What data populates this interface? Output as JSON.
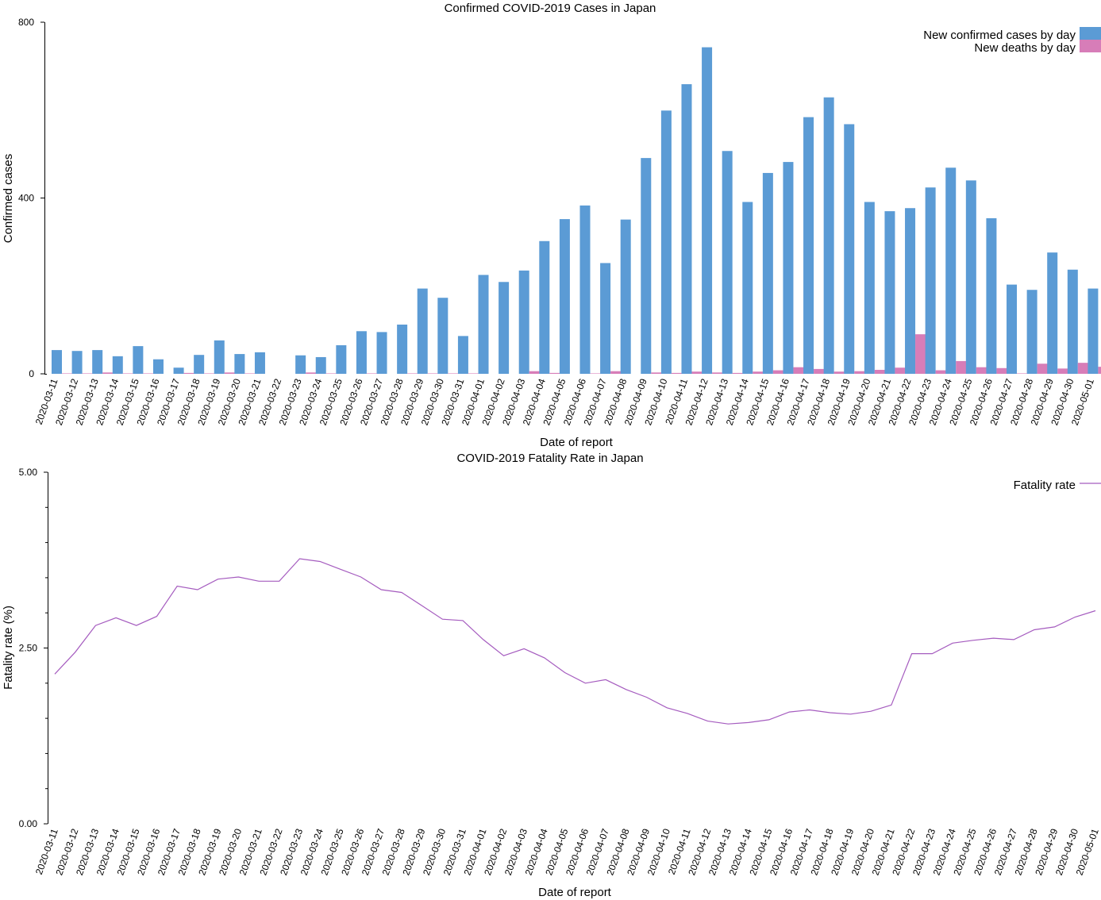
{
  "chart_data": [
    {
      "type": "bar",
      "title": "Confirmed COVID-2019 Cases in Japan",
      "xlabel": "Date of report",
      "ylabel": "Confirmed cases",
      "ylim": [
        0,
        800
      ],
      "y_ticks": [
        "0",
        "400",
        "800"
      ],
      "y_tick_values": [
        0,
        400,
        800
      ],
      "legend_position": "top-right",
      "categories": [
        "2020-03-11",
        "2020-03-12",
        "2020-03-13",
        "2020-03-14",
        "2020-03-15",
        "2020-03-16",
        "2020-03-17",
        "2020-03-18",
        "2020-03-19",
        "2020-03-20",
        "2020-03-21",
        "2020-03-22",
        "2020-03-23",
        "2020-03-24",
        "2020-03-25",
        "2020-03-26",
        "2020-03-27",
        "2020-03-28",
        "2020-03-29",
        "2020-03-30",
        "2020-03-31",
        "2020-04-01",
        "2020-04-02",
        "2020-04-03",
        "2020-04-04",
        "2020-04-05",
        "2020-04-06",
        "2020-04-07",
        "2020-04-08",
        "2020-04-09",
        "2020-04-10",
        "2020-04-11",
        "2020-04-12",
        "2020-04-13",
        "2020-04-14",
        "2020-04-15",
        "2020-04-16",
        "2020-04-17",
        "2020-04-18",
        "2020-04-19",
        "2020-04-20",
        "2020-04-21",
        "2020-04-22",
        "2020-04-23",
        "2020-04-24",
        "2020-04-25",
        "2020-04-26",
        "2020-04-27",
        "2020-04-28",
        "2020-04-29",
        "2020-04-30",
        "2020-05-01"
      ],
      "series": [
        {
          "name": "New confirmed cases by day",
          "color": "#5b9bd5",
          "values": [
            54,
            52,
            54,
            40,
            63,
            33,
            14,
            43,
            76,
            45,
            49,
            0,
            42,
            38,
            65,
            97,
            95,
            112,
            194,
            173,
            86,
            225,
            209,
            235,
            302,
            352,
            383,
            252,
            351,
            491,
            599,
            659,
            743,
            507,
            391,
            457,
            482,
            584,
            629,
            568,
            391,
            370,
            377,
            424,
            469,
            440,
            354,
            203,
            191,
            276,
            237,
            194
          ]
        },
        {
          "name": "New deaths by day",
          "color": "#d77db8",
          "values": [
            1,
            1,
            3,
            1,
            1,
            0,
            2,
            1,
            3,
            1,
            0,
            0,
            3,
            1,
            0,
            1,
            0,
            1,
            1,
            1,
            1,
            0,
            0,
            6,
            2,
            0,
            1,
            6,
            0,
            3,
            2,
            5,
            3,
            2,
            5,
            8,
            15,
            11,
            5,
            6,
            9,
            14,
            90,
            8,
            29,
            15,
            13,
            1,
            23,
            12,
            25,
            16
          ]
        }
      ]
    },
    {
      "type": "line",
      "title": "COVID-2019 Fatality Rate in Japan",
      "xlabel": "Date of report",
      "ylabel": "Fatality rate (%)",
      "ylim": [
        0,
        5
      ],
      "y_ticks": [
        "0.00",
        "2.50",
        "5.00"
      ],
      "y_tick_values": [
        0,
        2.5,
        5
      ],
      "legend_position": "top-right",
      "categories": [
        "2020-03-11",
        "2020-03-12",
        "2020-03-13",
        "2020-03-14",
        "2020-03-15",
        "2020-03-16",
        "2020-03-17",
        "2020-03-18",
        "2020-03-19",
        "2020-03-20",
        "2020-03-21",
        "2020-03-22",
        "2020-03-23",
        "2020-03-24",
        "2020-03-25",
        "2020-03-26",
        "2020-03-27",
        "2020-03-28",
        "2020-03-29",
        "2020-03-30",
        "2020-03-31",
        "2020-04-01",
        "2020-04-02",
        "2020-04-03",
        "2020-04-04",
        "2020-04-05",
        "2020-04-06",
        "2020-04-07",
        "2020-04-08",
        "2020-04-09",
        "2020-04-10",
        "2020-04-11",
        "2020-04-12",
        "2020-04-13",
        "2020-04-14",
        "2020-04-15",
        "2020-04-16",
        "2020-04-17",
        "2020-04-18",
        "2020-04-19",
        "2020-04-20",
        "2020-04-21",
        "2020-04-22",
        "2020-04-23",
        "2020-04-24",
        "2020-04-25",
        "2020-04-26",
        "2020-04-27",
        "2020-04-28",
        "2020-04-29",
        "2020-04-30",
        "2020-05-01"
      ],
      "series": [
        {
          "name": "Fatality rate",
          "color": "#a55cbf",
          "values": [
            2.13,
            2.44,
            2.82,
            2.93,
            2.82,
            2.95,
            3.38,
            3.33,
            3.48,
            3.51,
            3.45,
            3.45,
            3.77,
            3.73,
            3.62,
            3.51,
            3.33,
            3.29,
            3.1,
            2.91,
            2.89,
            2.62,
            2.39,
            2.49,
            2.36,
            2.15,
            2.0,
            2.05,
            1.91,
            1.8,
            1.65,
            1.57,
            1.46,
            1.42,
            1.44,
            1.48,
            1.59,
            1.62,
            1.58,
            1.56,
            1.6,
            1.69,
            2.42,
            2.42,
            2.57,
            2.61,
            2.64,
            2.62,
            2.76,
            2.8,
            2.94,
            3.03
          ]
        }
      ]
    }
  ]
}
